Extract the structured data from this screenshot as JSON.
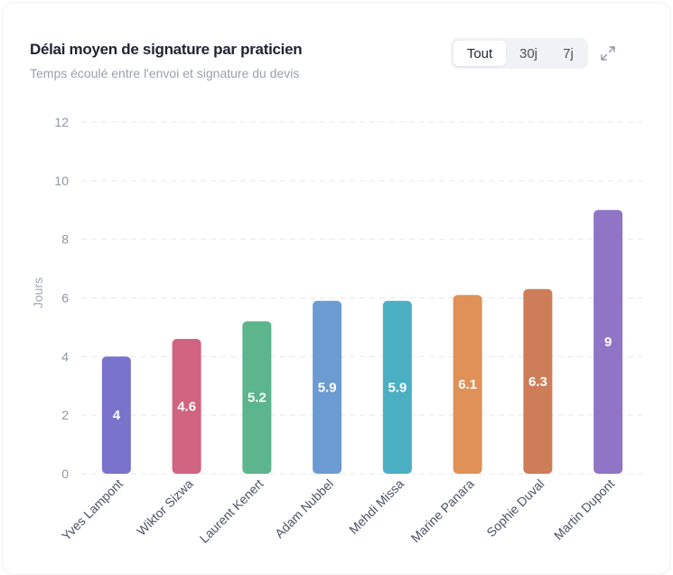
{
  "header": {
    "title": "Délai moyen de signature par praticien",
    "subtitle": "Temps écoulé entre l'envoi et signature du devis"
  },
  "filters": {
    "options": [
      "Tout",
      "30j",
      "7j"
    ],
    "selected": "Tout"
  },
  "icons": {
    "expand": "expand-arrows-icon"
  },
  "chart_data": {
    "type": "bar",
    "categories": [
      "Yves Lampont",
      "Wiktor Sizwa",
      "Laurent Kenert",
      "Adam Nubbel",
      "Mehdi Missa",
      "Marine Panara",
      "Sophie Duval",
      "Martin Dupont"
    ],
    "values": [
      4,
      4.6,
      5.2,
      5.9,
      5.9,
      6.1,
      6.3,
      9
    ],
    "data_labels": [
      "4",
      "4.6",
      "5.2",
      "5.9",
      "5.9",
      "6.1",
      "6.3",
      "9"
    ],
    "colors": [
      "#7a73cc",
      "#d06480",
      "#5cb58c",
      "#6b9bd2",
      "#4aafc2",
      "#df9158",
      "#cd7d58",
      "#9075c6"
    ],
    "ylabel": "Jours",
    "xlabel": "",
    "ylim": [
      0,
      12
    ],
    "yticks": [
      0,
      2,
      4,
      6,
      8,
      10,
      12
    ],
    "grid": true,
    "legend": "none"
  }
}
